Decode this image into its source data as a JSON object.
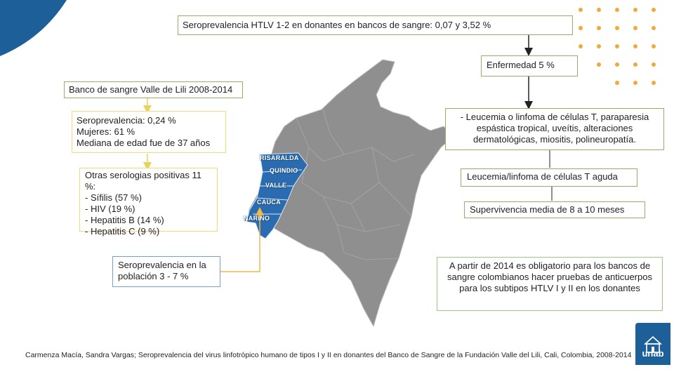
{
  "top_box": "Seroprevalencia HTLV 1-2 en donantes en bancos de sangre: 0,07 y 3,52 %",
  "disease_box": "Enfermedad 5 %",
  "bank_title": "Banco de sangre Valle de Lili 2008-2014",
  "bank_stats": "Seroprevalencia: 0,24 %\nMujeres: 61 %\nMediana de edad fue de 37 años",
  "other_serologies": "Otras serologias positivas 11 %:\n- Sífilis (57 %)\n- HIV (19 %)\n- Hepatitis B (14 %)\n- Hepatitis C (9 %)",
  "population_box": "Seroprevalencia en la población 3 - 7 %",
  "diseases_list": "- Leucemia o linfoma de células T, paraparesia espástica tropical, uveítis, alteraciones dermatológicas, miositis, polineuropatía.",
  "acute_box": "Leucemia/linfoma de células T aguda",
  "survival_box": "Supervivencia media de 8 a 10 meses",
  "obligation_box": "A partir de 2014 es obligatorio para los bancos de sangre colombianos hacer pruebas de anticuerpos para los subtipos HTLV I y II en los donantes",
  "map_labels": [
    "RISARALDA",
    "QUINDIO",
    "VALLE",
    "CAUCA",
    "NARIÑO"
  ],
  "footer": "Carmenza Macía, Sandra Vargas; Seroprevalencia del virus linfotrópico humano de tipos I y II en donantes del Banco de Sangre de la Fundación Valle del Lili, Cali, Colombia, 2008-2014",
  "logo_text": "unab",
  "colors": {
    "brand_blue": "#1d5f99",
    "map_gray": "#8f8f8f",
    "highlight_blue": "#2b6cb0",
    "arrow_orange": "#f0b74a",
    "dot_orange": "#f0a93a"
  }
}
